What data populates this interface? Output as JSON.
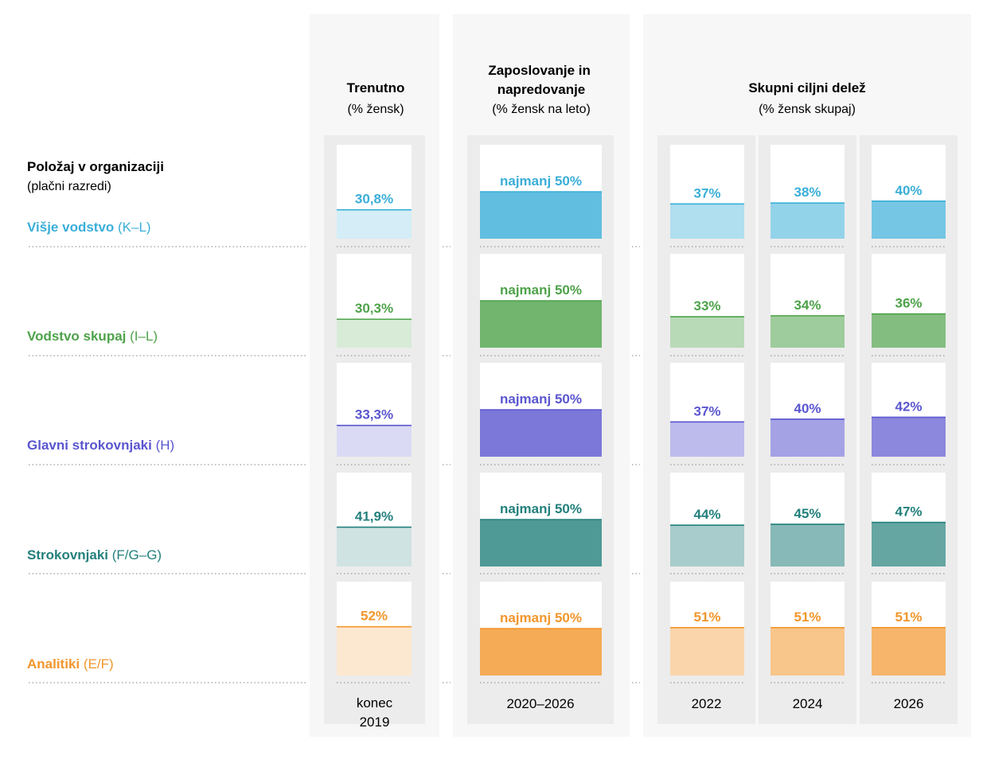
{
  "row_header": {
    "title": "Položaj v organizaciji",
    "subtitle": "(plačni razredi)"
  },
  "colors": {
    "senior": "#3aaed8",
    "leadership": "#4ea24a",
    "principal": "#5a56cf",
    "expert": "#23807c",
    "analyst": "#f2962c",
    "panel_bg": "#f7f7f7",
    "column_bg": "#ececec",
    "dots": "#9a9a9a"
  },
  "rows": [
    {
      "key": "senior",
      "label": "Višje vodstvo",
      "grade": "(K–L)",
      "color": "#3aaed8"
    },
    {
      "key": "leadership",
      "label": "Vodstvo skupaj",
      "grade": "(I–L)",
      "color": "#4ea24a"
    },
    {
      "key": "principal",
      "label": "Glavni strokovnjaki",
      "grade": "(H)",
      "color": "#5a56cf"
    },
    {
      "key": "expert",
      "label": "Strokovnjaki",
      "grade": "(F/G–G)",
      "color": "#23807c"
    },
    {
      "key": "analyst",
      "label": "Analitiki",
      "grade": "(E/F)",
      "color": "#f2962c"
    }
  ],
  "groups": [
    {
      "title": "Trenutno",
      "subtitle": "(% žensk)"
    },
    {
      "title": "Zaposlovanje in napredovanje",
      "subtitle": "(% žensk na leto)"
    },
    {
      "title": "Skupni ciljni delež",
      "subtitle": "(% žensk skupaj)"
    }
  ],
  "chart_data": {
    "type": "bar",
    "categories": [
      "Višje vodstvo (K–L)",
      "Vodstvo skupaj (I–L)",
      "Glavni strokovnjaki (H)",
      "Strokovnjaki (F/G–G)",
      "Analitiki (E/F)"
    ],
    "ylim": [
      0,
      100
    ],
    "columns": [
      {
        "group": 0,
        "label": "konec 2019",
        "values": [
          30.8,
          30.3,
          33.3,
          41.9,
          52
        ],
        "value_labels": [
          "30,8%",
          "30,3%",
          "33,3%",
          "41,9%",
          "52%"
        ],
        "opacity": 0.22
      },
      {
        "group": 1,
        "label": "2020–2026",
        "values": [
          50,
          50,
          50,
          50,
          50
        ],
        "value_labels": [
          "najmanj 50%",
          "najmanj 50%",
          "najmanj 50%",
          "najmanj 50%",
          "najmanj 50%"
        ],
        "opacity": 0.8
      },
      {
        "group": 2,
        "label": "2022",
        "values": [
          37,
          33,
          37,
          44,
          51
        ],
        "value_labels": [
          "37%",
          "33%",
          "37%",
          "44%",
          "51%"
        ],
        "opacity": 0.4
      },
      {
        "group": 2,
        "label": "2024",
        "values": [
          38,
          34,
          40,
          45,
          51
        ],
        "value_labels": [
          "38%",
          "34%",
          "40%",
          "45%",
          "51%"
        ],
        "opacity": 0.55
      },
      {
        "group": 2,
        "label": "2026",
        "values": [
          40,
          36,
          42,
          47,
          51
        ],
        "value_labels": [
          "40%",
          "36%",
          "42%",
          "47%",
          "51%"
        ],
        "opacity": 0.7
      }
    ]
  }
}
